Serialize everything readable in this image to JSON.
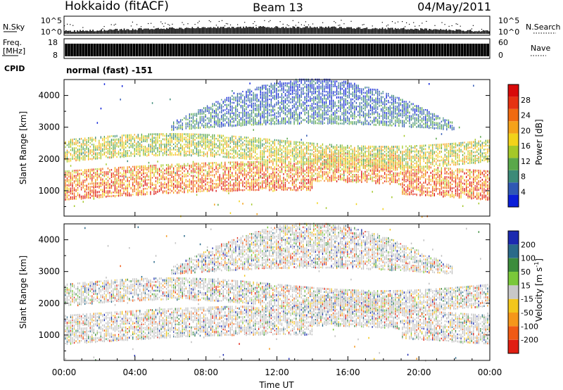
{
  "header": {
    "station": "Hokkaido (fitACF)",
    "beam": "Beam 13",
    "date": "04/May/2011"
  },
  "strip_labels": {
    "nsky": "N.Sky",
    "nsearch": "N.Search",
    "freq_line1": "Freq.",
    "freq_line2": "[MHz]",
    "nave": "Nave",
    "cpid": "CPID",
    "cpid_value": "normal (fast) -151",
    "nsky_ticks": [
      "10^5",
      "10^0"
    ],
    "nsearch_ticks": [
      "10^5",
      "10^0"
    ],
    "freq_ticks": [
      "18",
      "8"
    ],
    "nave_ticks": [
      "60",
      "0"
    ]
  },
  "x_axis": {
    "label": "Time UT",
    "ticks": [
      "00:00",
      "04:00",
      "08:00",
      "12:00",
      "16:00",
      "20:00",
      "00:00"
    ],
    "range_hours": [
      0,
      24
    ]
  },
  "power_panel": {
    "ylabel": "Slant Range [km]",
    "yticks": [
      "1000",
      "2000",
      "3000",
      "4000"
    ],
    "ylim": [
      200,
      4500
    ],
    "colorbar_label": "Power [dB]",
    "colorbar_ticks": [
      "4",
      "8",
      "12",
      "16",
      "20",
      "24",
      "28"
    ],
    "colors": [
      "#0a1ed8",
      "#2f58b4",
      "#3c8a78",
      "#5aa84a",
      "#a4c828",
      "#f2d21a",
      "#f5a21a",
      "#f06a10",
      "#e63212",
      "#d80a0a"
    ]
  },
  "velocity_panel": {
    "ylabel": "Slant Range [km]",
    "yticks": [
      "1000",
      "2000",
      "3000",
      "4000"
    ],
    "ylim": [
      200,
      4500
    ],
    "colorbar_label": "Velocity [m s",
    "colorbar_label_sup": "-1",
    "colorbar_label_end": "]",
    "colorbar_ticks": [
      "200",
      "100",
      "50",
      "15",
      "-15",
      "-50",
      "-100",
      "-200"
    ],
    "colors": [
      "#1c2ab0",
      "#2a6a8a",
      "#3c8c3c",
      "#7ac83a",
      "#c8c8c8",
      "#f2c61c",
      "#f5961a",
      "#f05a14",
      "#e01e12"
    ],
    "ground_scatter_color": "#c0c0c0"
  },
  "chart_data": {
    "type": "heatmap",
    "title": "Hokkaido (fitACF) Beam 13 04/May/2011",
    "xlabel": "Time UT",
    "ylabel": "Slant Range [km]",
    "xlim_hours": [
      0,
      24
    ],
    "ylim_km": [
      200,
      4500
    ],
    "power_scale_db": [
      0,
      30
    ],
    "velocity_scale_ms": [
      -200,
      200
    ],
    "echo_bands": [
      {
        "name": "near-range band",
        "time_hours": [
          0,
          24
        ],
        "range_km": [
          800,
          1800
        ]
      },
      {
        "name": "mid-range band",
        "time_hours": [
          0,
          24
        ],
        "range_km": [
          1800,
          2800
        ]
      },
      {
        "name": "far-range band",
        "time_hours": [
          6,
          22
        ],
        "range_km": [
          2800,
          4300
        ]
      }
    ]
  }
}
